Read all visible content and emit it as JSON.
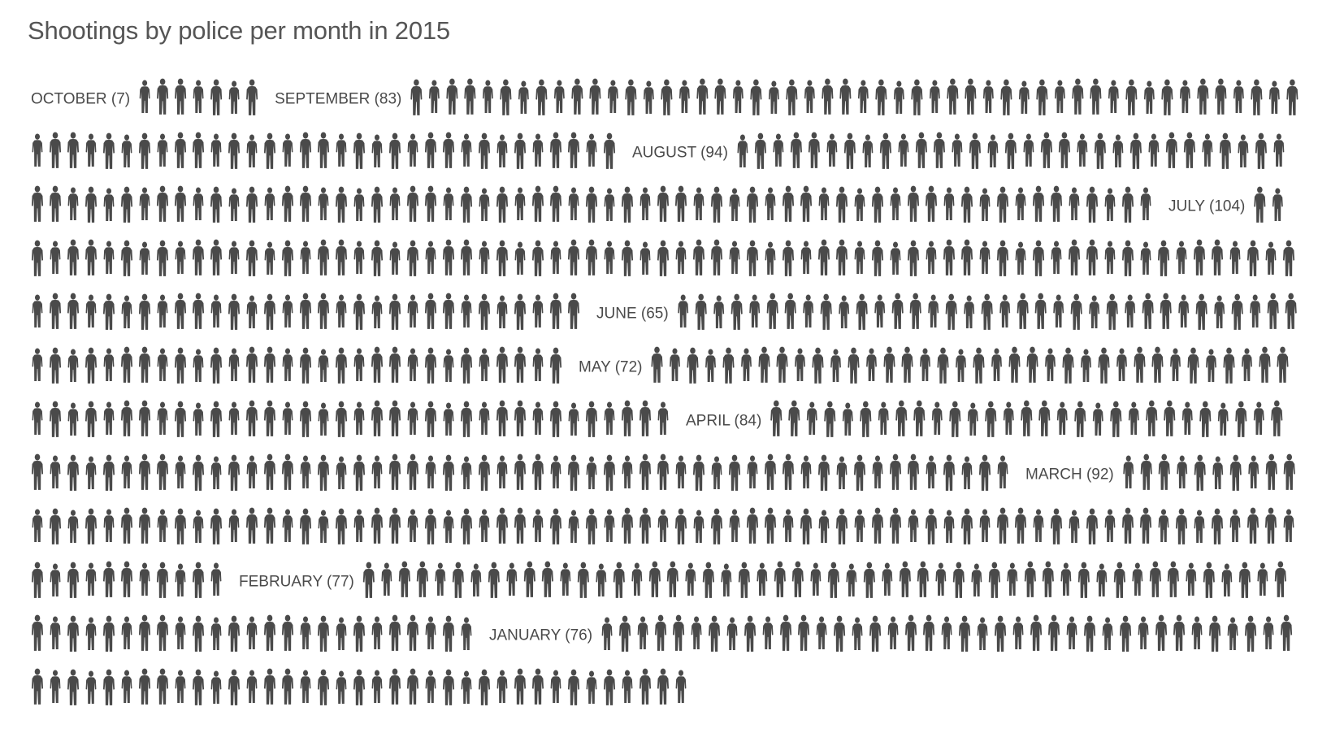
{
  "title": "Shootings by police per month in 2015",
  "colors": {
    "figure": "#4a4a4a",
    "label": "#4a4a4a",
    "title": "#555555",
    "background": "#ffffff"
  },
  "icon": "person-silhouette-icon",
  "chart_data": {
    "type": "pictogram",
    "title": "Shootings by police per month in 2015",
    "unit": "one figure per person shot",
    "order": "reverse chronological, reading left-to-right, top-to-bottom",
    "series": [
      {
        "label": "OCTOBER (7)",
        "month": "October",
        "value": 7
      },
      {
        "label": "SEPTEMBER (83)",
        "month": "September",
        "value": 83
      },
      {
        "label": "AUGUST (94)",
        "month": "August",
        "value": 94
      },
      {
        "label": "JULY (104)",
        "month": "July",
        "value": 104
      },
      {
        "label": "JUNE (65)",
        "month": "June",
        "value": 65
      },
      {
        "label": "MAY (72)",
        "month": "May",
        "value": 72
      },
      {
        "label": "APRIL (84)",
        "month": "April",
        "value": 84
      },
      {
        "label": "MARCH (92)",
        "month": "March",
        "value": 92
      },
      {
        "label": "FEBRUARY (77)",
        "month": "February",
        "value": 77
      },
      {
        "label": "JANUARY (76)",
        "month": "January",
        "value": 76
      }
    ]
  }
}
